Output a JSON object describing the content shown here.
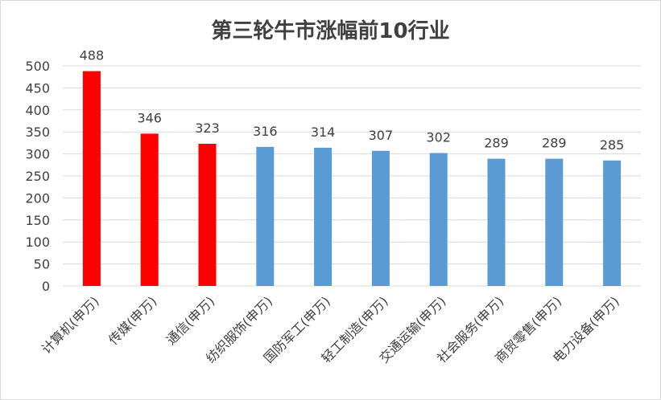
{
  "chart_data": {
    "type": "bar",
    "title": "第三轮牛市涨幅前10行业",
    "categories": [
      "计算机(申万)",
      "传媒(申万)",
      "通信(申万)",
      "纺织服饰(申万)",
      "国防军工(申万)",
      "轻工制造(申万)",
      "交通运输(申万)",
      "社会服务(申万)",
      "商贸零售(申万)",
      "电力设备(申万)"
    ],
    "values": [
      488,
      346,
      323,
      316,
      314,
      307,
      302,
      289,
      289,
      285
    ],
    "bar_colors": [
      "#ff0000",
      "#ff0000",
      "#ff0000",
      "#5b9bd5",
      "#5b9bd5",
      "#5b9bd5",
      "#5b9bd5",
      "#5b9bd5",
      "#5b9bd5",
      "#5b9bd5"
    ],
    "ylim": [
      0,
      500
    ],
    "yticks": [
      0,
      50,
      100,
      150,
      200,
      250,
      300,
      350,
      400,
      450,
      500
    ],
    "grid": true,
    "legend": "none",
    "xlabel": "",
    "ylabel": ""
  },
  "colors": {
    "gridline": "#d9d9d9",
    "text": "#404040"
  }
}
